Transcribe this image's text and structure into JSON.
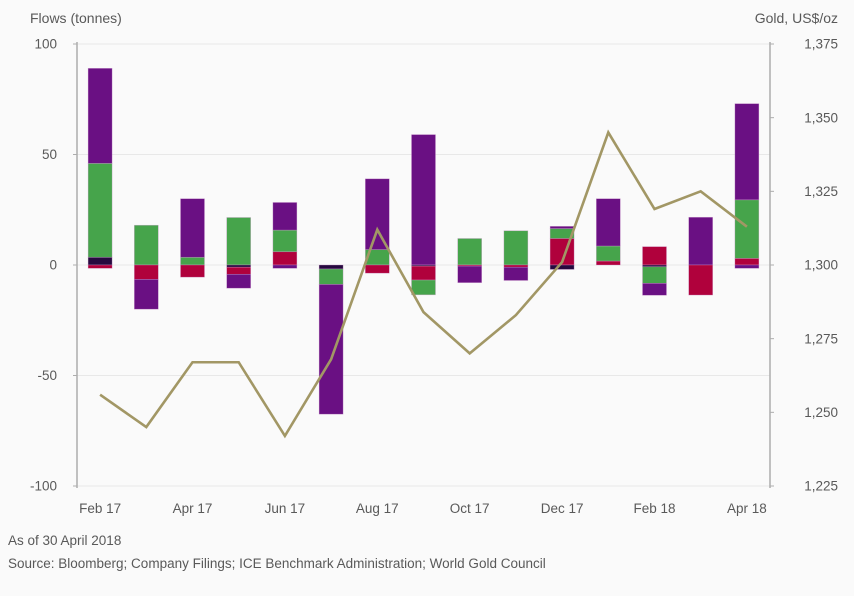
{
  "page": {
    "background": "#fafafa"
  },
  "header": {
    "left_axis_title": "Flows (tonnes)",
    "right_axis_title": "Gold, US$/oz"
  },
  "footer": {
    "as_of": "As of 30 April 2018",
    "source": "Source: Bloomberg; Company Filings; ICE Benchmark Administration; World Gold Council"
  },
  "chart_data": {
    "type": "combo",
    "bar_type": "stacked",
    "line_overlay": true,
    "grid": "horizontal",
    "legend": "none",
    "months": [
      "Feb 17",
      "Mar 17",
      "Apr 17",
      "May 17",
      "Jun 17",
      "Jul 17",
      "Aug 17",
      "Sep 17",
      "Oct 17",
      "Nov 17",
      "Dec 17",
      "Jan 18",
      "Feb 18",
      "Mar 18",
      "Apr 18"
    ],
    "x_tick_labels": [
      "Feb 17",
      "Apr 17",
      "Jun 17",
      "Aug 17",
      "Oct 17",
      "Dec 17",
      "Feb 18",
      "Apr 18"
    ],
    "left_axis": {
      "title": "Flows (tonnes)",
      "min": -100,
      "max": 100,
      "ticks": [
        100,
        50,
        0,
        -50,
        -100
      ],
      "tick_labels": [
        "100",
        "50",
        "0",
        "-50",
        "-100"
      ]
    },
    "right_axis": {
      "title": "Gold, US$/oz",
      "min": 1225,
      "max": 1375,
      "ticks": [
        1375,
        1350,
        1325,
        1300,
        1275,
        1250,
        1225
      ],
      "tick_labels": [
        "1,375",
        "1,350",
        "1,325",
        "1,300",
        "1,275",
        "1,250",
        "1,225"
      ]
    },
    "series_colors": {
      "purple": "#6a1083",
      "green": "#46a44b",
      "crimson": "#b0013c",
      "dark": "#26093f"
    },
    "bars": [
      {
        "month": "Feb 17",
        "segments": [
          {
            "color": "dark",
            "value": 3.5
          },
          {
            "color": "green",
            "value": 42.5
          },
          {
            "color": "purple",
            "value": 43
          },
          {
            "color": "crimson",
            "value": -1.5
          }
        ]
      },
      {
        "month": "Mar 17",
        "segments": [
          {
            "color": "green",
            "value": 18
          },
          {
            "color": "crimson",
            "value": -6.5
          },
          {
            "color": "purple",
            "value": -13.5
          }
        ]
      },
      {
        "month": "Apr 17",
        "segments": [
          {
            "color": "green",
            "value": 3.5
          },
          {
            "color": "purple",
            "value": 26.5
          },
          {
            "color": "crimson",
            "value": -5.5
          }
        ]
      },
      {
        "month": "May 17",
        "segments": [
          {
            "color": "green",
            "value": 21.5
          },
          {
            "color": "dark",
            "value": -1
          },
          {
            "color": "crimson",
            "value": -3.2
          },
          {
            "color": "purple",
            "value": -6.3
          }
        ]
      },
      {
        "month": "Jun 17",
        "segments": [
          {
            "color": "crimson",
            "value": 6
          },
          {
            "color": "green",
            "value": 9.8
          },
          {
            "color": "purple",
            "value": 12.5
          },
          {
            "color": "purple",
            "value": -1.5
          }
        ]
      },
      {
        "month": "Jul 17",
        "segments": [
          {
            "color": "dark",
            "value": -1.8
          },
          {
            "color": "green",
            "value": -7
          },
          {
            "color": "purple",
            "value": -58.7
          }
        ]
      },
      {
        "month": "Aug 17",
        "segments": [
          {
            "color": "green",
            "value": 7
          },
          {
            "color": "purple",
            "value": 32
          },
          {
            "color": "crimson",
            "value": -3.7
          }
        ]
      },
      {
        "month": "Sep 17",
        "segments": [
          {
            "color": "purple",
            "value": 59
          },
          {
            "color": "dark",
            "value": -0.5
          },
          {
            "color": "crimson",
            "value": -6.3
          },
          {
            "color": "green",
            "value": -6.7
          }
        ]
      },
      {
        "month": "Oct 17",
        "segments": [
          {
            "color": "green",
            "value": 12
          },
          {
            "color": "crimson",
            "value": -0.5
          },
          {
            "color": "purple",
            "value": -7.5
          }
        ]
      },
      {
        "month": "Nov 17",
        "segments": [
          {
            "color": "green",
            "value": 15.5
          },
          {
            "color": "crimson",
            "value": -1
          },
          {
            "color": "purple",
            "value": -6
          }
        ]
      },
      {
        "month": "Dec 17",
        "segments": [
          {
            "color": "crimson",
            "value": 12
          },
          {
            "color": "green",
            "value": 4.5
          },
          {
            "color": "purple",
            "value": 1
          },
          {
            "color": "dark",
            "value": -2
          }
        ]
      },
      {
        "month": "Jan 18",
        "segments": [
          {
            "color": "crimson",
            "value": 1.8
          },
          {
            "color": "green",
            "value": 6.8
          },
          {
            "color": "purple",
            "value": 21.4
          }
        ]
      },
      {
        "month": "Feb 18",
        "segments": [
          {
            "color": "crimson",
            "value": 8.3
          },
          {
            "color": "dark",
            "value": -0.8
          },
          {
            "color": "green",
            "value": -7.5
          },
          {
            "color": "purple",
            "value": -5.4
          }
        ]
      },
      {
        "month": "Mar 18",
        "segments": [
          {
            "color": "purple",
            "value": 21.6
          },
          {
            "color": "crimson",
            "value": -13.6
          }
        ]
      },
      {
        "month": "Apr 18",
        "segments": [
          {
            "color": "crimson",
            "value": 3
          },
          {
            "color": "green",
            "value": 26.5
          },
          {
            "color": "purple",
            "value": 43.5
          },
          {
            "color": "purple",
            "value": -1.5
          }
        ]
      }
    ],
    "line": {
      "name": "Gold price, US$/oz",
      "color": "#a29765",
      "values": [
        1256,
        1245,
        1267,
        1267,
        1242,
        1268,
        1312,
        1284,
        1270,
        1283,
        1301,
        1345,
        1319,
        1325,
        1313
      ]
    },
    "style_colors": {
      "axis_line": "#adadad",
      "gridline": "#e8e8e8",
      "text": "#595959",
      "bar_border": "#cf9ecf"
    }
  }
}
